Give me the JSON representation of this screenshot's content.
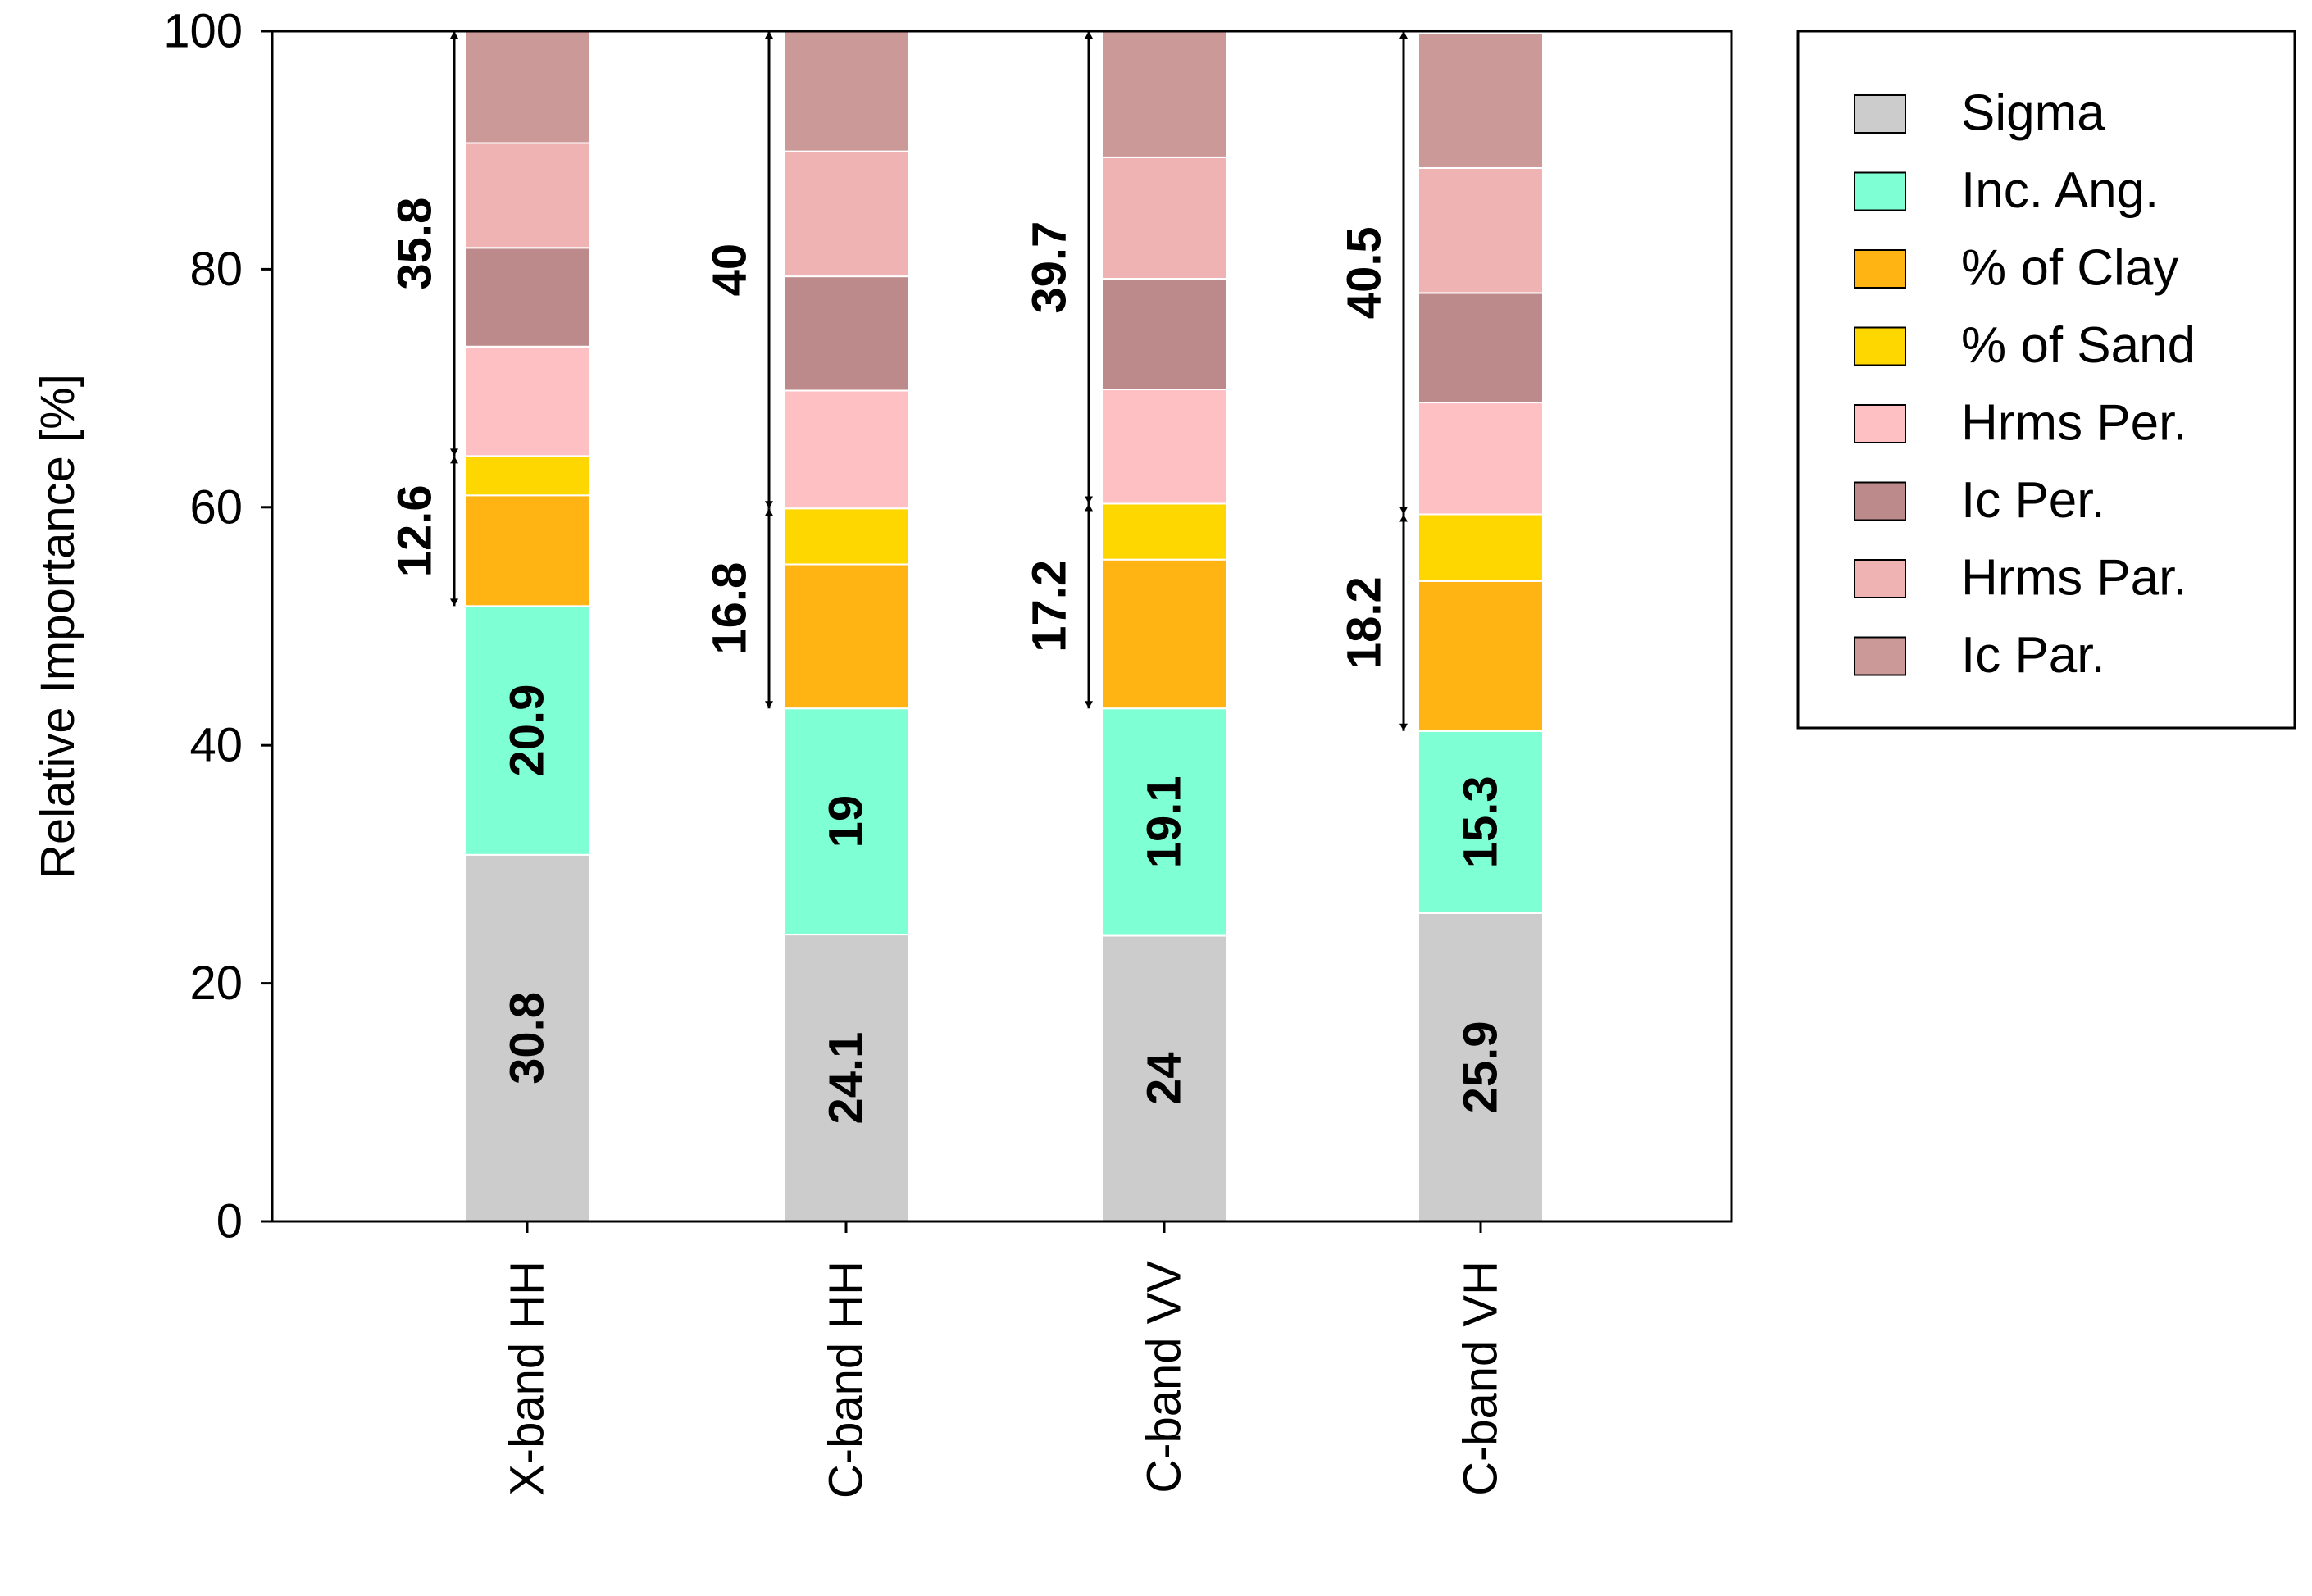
{
  "chart_data": {
    "type": "bar",
    "stacked": true,
    "title": "",
    "xlabel": "",
    "ylabel": "Relative Importance [%]",
    "ylim": [
      0,
      100
    ],
    "yticks": [
      "0",
      "20",
      "40",
      "60",
      "80",
      "100"
    ],
    "categories": [
      "X-band HH",
      "C-band HH",
      "C-band VV",
      "C-band VH"
    ],
    "series": [
      {
        "name": "Sigma",
        "color": "#cccccc",
        "values": [
          30.8,
          24.1,
          24.0,
          25.9
        ]
      },
      {
        "name": "Inc. Ang.",
        "color": "#7fffd4",
        "values": [
          20.9,
          19.0,
          19.1,
          15.3
        ]
      },
      {
        "name": "% of Clay",
        "color": "#ffb414",
        "values": [
          9.3,
          12.1,
          12.5,
          12.6
        ]
      },
      {
        "name": "% of Sand",
        "color": "#ffd700",
        "values": [
          3.3,
          4.7,
          4.7,
          5.6
        ]
      },
      {
        "name": "Hrms Per.",
        "color": "#ffc0c4",
        "values": [
          9.2,
          9.9,
          9.6,
          9.4
        ]
      },
      {
        "name": "Ic Per.",
        "color": "#bc8a8a",
        "values": [
          8.3,
          9.6,
          9.3,
          9.2
        ]
      },
      {
        "name": "Hrms Par.",
        "color": "#f0b3b3",
        "values": [
          8.8,
          10.5,
          10.2,
          10.5
        ]
      },
      {
        "name": "Ic Par.",
        "color": "#cc9999",
        "values": [
          9.4,
          10.1,
          10.6,
          11.3
        ]
      }
    ],
    "segment_labels": {
      "Sigma": [
        "30.8",
        "24.1",
        "24",
        "25.9"
      ],
      "Inc. Ang.": [
        "20.9",
        "19",
        "19.1",
        "15.3"
      ]
    },
    "annotations": [
      {
        "category": "X-band HH",
        "lower": {
          "text": "12.6",
          "from": 51.7,
          "to": 64.3
        },
        "upper": {
          "text": "35.8",
          "from": 64.3,
          "to": 100
        }
      },
      {
        "category": "C-band HH",
        "lower": {
          "text": "16.8",
          "from": 43.1,
          "to": 59.9
        },
        "upper": {
          "text": "40",
          "from": 59.9,
          "to": 100
        }
      },
      {
        "category": "C-band VV",
        "lower": {
          "text": "17.2",
          "from": 43.1,
          "to": 60.3
        },
        "upper": {
          "text": "39.7",
          "from": 60.3,
          "to": 100
        }
      },
      {
        "category": "C-band VH",
        "lower": {
          "text": "18.2",
          "from": 41.2,
          "to": 59.4
        },
        "upper": {
          "text": "40.5",
          "from": 59.4,
          "to": 100
        }
      }
    ],
    "legend_position": "top-right",
    "grid": false
  }
}
